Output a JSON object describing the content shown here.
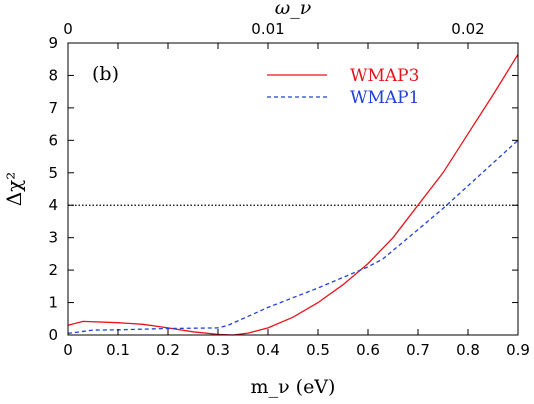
{
  "chart_data": {
    "type": "line",
    "panel_label": "(b)",
    "xlabel": "m_ν (eV)",
    "ylabel": "Δχ²",
    "top_xlabel": "ω_ν",
    "xlim": [
      0,
      0.9
    ],
    "ylim": [
      0,
      9
    ],
    "x_ticks": [
      "0",
      "0.1",
      "0.2",
      "0.3",
      "0.4",
      "0.5",
      "0.6",
      "0.7",
      "0.8",
      "0.9"
    ],
    "y_ticks": [
      "0",
      "1",
      "2",
      "3",
      "4",
      "5",
      "6",
      "7",
      "8",
      "9"
    ],
    "top_x_ticks": [
      "0",
      "0.01",
      "0.02"
    ],
    "hline": {
      "y": 4,
      "style": "dotted",
      "color": "#000000"
    },
    "legend_position": "top-right",
    "series": [
      {
        "name": "WMAP3",
        "color": "#e8141b",
        "style": "solid",
        "x": [
          0,
          0.03,
          0.1,
          0.15,
          0.2,
          0.25,
          0.3,
          0.33,
          0.36,
          0.4,
          0.45,
          0.5,
          0.55,
          0.6,
          0.65,
          0.7,
          0.75,
          0.8,
          0.85,
          0.9
        ],
        "y": [
          0.3,
          0.42,
          0.38,
          0.33,
          0.22,
          0.1,
          0.02,
          0.0,
          0.06,
          0.22,
          0.55,
          1.0,
          1.55,
          2.2,
          3.0,
          4.0,
          5.0,
          6.2,
          7.4,
          8.65
        ]
      },
      {
        "name": "WMAP1",
        "color": "#2040d8",
        "style": "dashed",
        "x": [
          0,
          0.05,
          0.1,
          0.2,
          0.3,
          0.32,
          0.4,
          0.5,
          0.6,
          0.63,
          0.7,
          0.75,
          0.8,
          0.85,
          0.9
        ],
        "y": [
          0.05,
          0.15,
          0.16,
          0.2,
          0.22,
          0.3,
          0.85,
          1.45,
          2.1,
          2.35,
          3.25,
          3.9,
          4.6,
          5.3,
          6.0
        ]
      }
    ]
  }
}
